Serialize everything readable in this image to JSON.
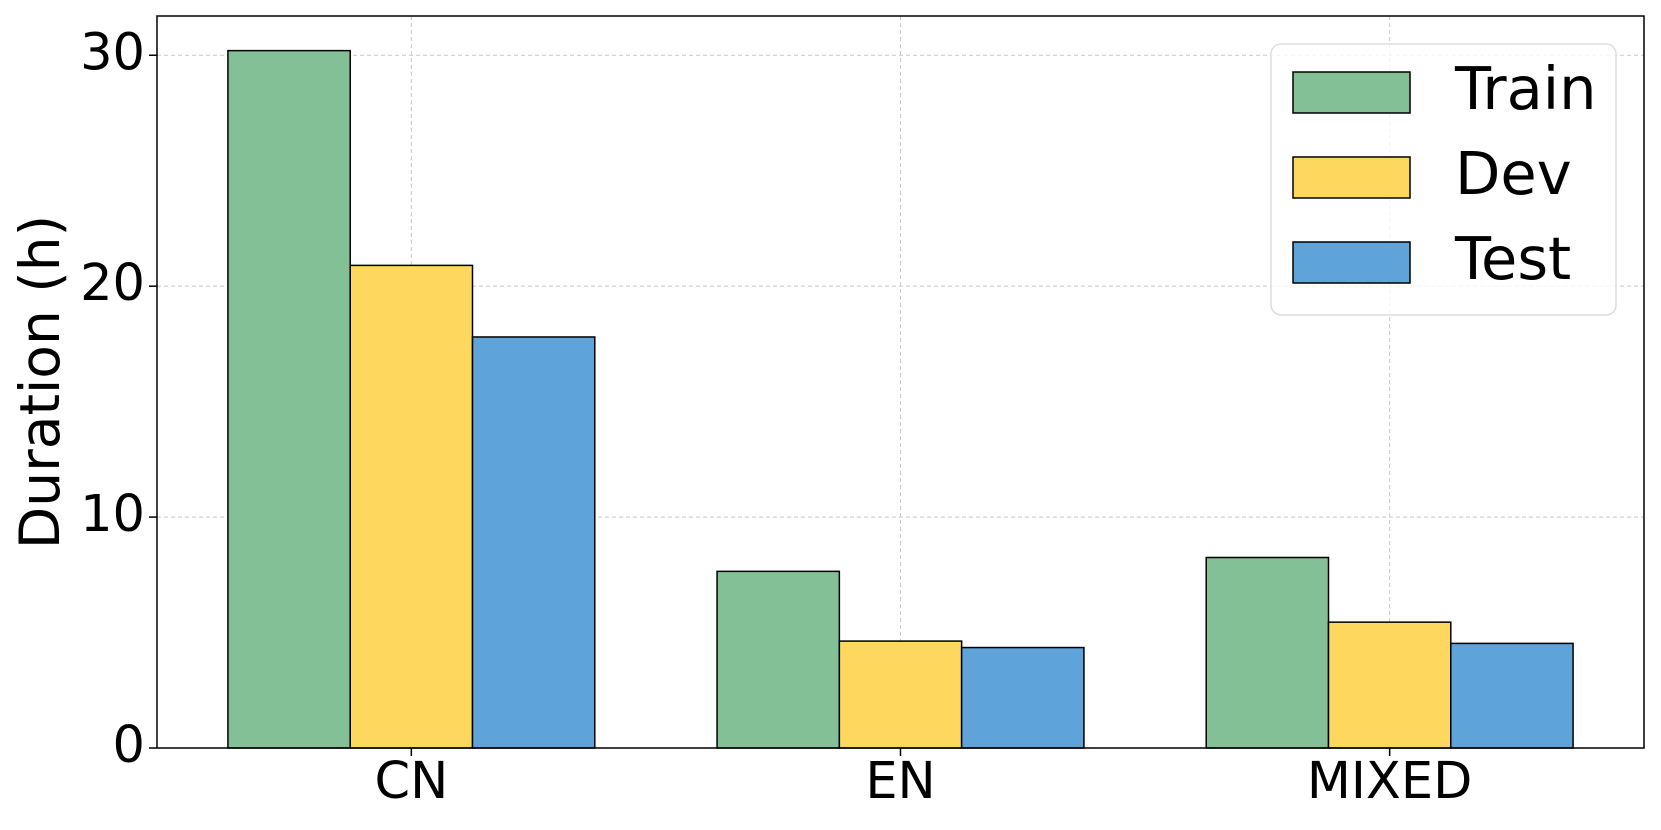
{
  "chart_data": {
    "type": "bar",
    "y_label": "Duration (h)",
    "categories": [
      "CN",
      "EN",
      "MIXED"
    ],
    "series": [
      {
        "name": "Train",
        "color": "#83c095",
        "values": [
          30.2,
          7.65,
          8.25
        ]
      },
      {
        "name": "Dev",
        "color": "#fdd75e",
        "values": [
          20.9,
          4.63,
          5.45
        ]
      },
      {
        "name": "Test",
        "color": "#5ea3d9",
        "values": [
          17.8,
          4.35,
          4.53
        ]
      }
    ],
    "ylim": [
      0,
      31.7
    ],
    "yticks": [
      0,
      10,
      20,
      30
    ],
    "grid": true,
    "legend": "upper right"
  }
}
